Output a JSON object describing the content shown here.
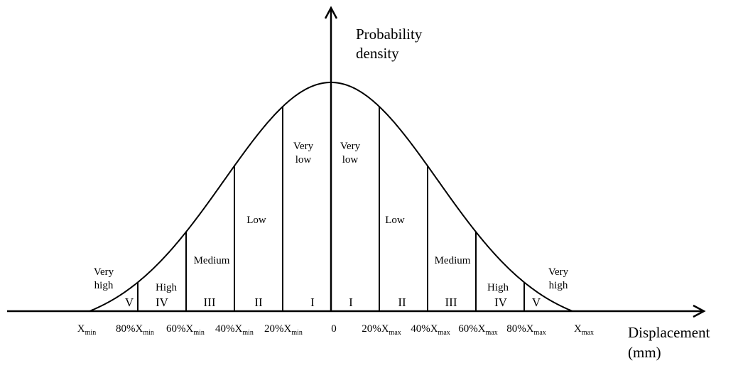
{
  "axes": {
    "y_title_line1": "Probability",
    "y_title_line2": "density",
    "x_title_line1": "Displacement",
    "x_title_line2": "(mm)"
  },
  "ticks": [
    {
      "prefix": "",
      "var": "X",
      "sub": "min"
    },
    {
      "prefix": "80%",
      "var": "X",
      "sub": "min"
    },
    {
      "prefix": "60%",
      "var": "X",
      "sub": "min"
    },
    {
      "prefix": "40%",
      "var": "X",
      "sub": "min"
    },
    {
      "prefix": "20%",
      "var": "X",
      "sub": "min"
    },
    {
      "prefix": "",
      "var": "0",
      "sub": ""
    },
    {
      "prefix": "20%",
      "var": "X",
      "sub": "max"
    },
    {
      "prefix": "40%",
      "var": "X",
      "sub": "max"
    },
    {
      "prefix": "60%",
      "var": "X",
      "sub": "max"
    },
    {
      "prefix": "80%",
      "var": "X",
      "sub": "max"
    },
    {
      "prefix": "",
      "var": "X",
      "sub": "max"
    }
  ],
  "zones": {
    "left": [
      {
        "roman": "V",
        "label": [
          "Very",
          "high"
        ]
      },
      {
        "roman": "IV",
        "label": [
          "High"
        ]
      },
      {
        "roman": "III",
        "label": [
          "Medium"
        ]
      },
      {
        "roman": "II",
        "label": [
          "Low"
        ]
      },
      {
        "roman": "I",
        "label": [
          "Very",
          "low"
        ]
      }
    ],
    "right": [
      {
        "roman": "I",
        "label": [
          "Very",
          "low"
        ]
      },
      {
        "roman": "II",
        "label": [
          "Low"
        ]
      },
      {
        "roman": "III",
        "label": [
          "Medium"
        ]
      },
      {
        "roman": "IV",
        "label": [
          "High"
        ]
      },
      {
        "roman": "V",
        "label": [
          "Very",
          "high"
        ]
      }
    ]
  },
  "colors": {
    "stroke": "#000000",
    "background": "#ffffff"
  }
}
